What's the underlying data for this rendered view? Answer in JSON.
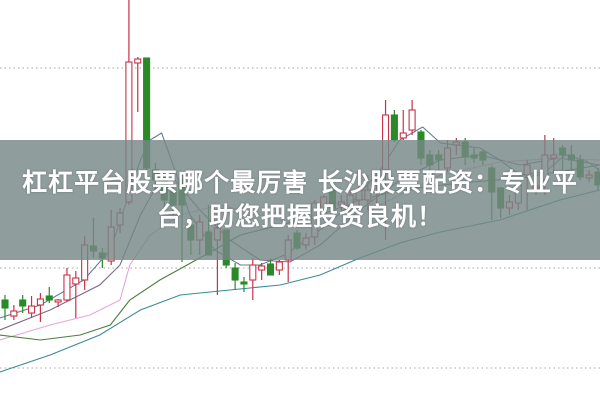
{
  "banner": {
    "line1": "杠杠平台股票哪个最厉害 长沙股票配资：专业平",
    "line2": "台，助您把握投资良机！"
  },
  "chart_data": {
    "type": "candlestick",
    "title": "",
    "xlabel": "",
    "ylabel": "",
    "ylim": [
      0,
      400
    ],
    "grid": true,
    "gridlines": [
      332,
      132,
      32
    ],
    "colors": {
      "up": "#c8324a",
      "down": "#2a8a2a",
      "grid": "#b8b8b8"
    },
    "candles_ohlc": [
      [
        100,
        105,
        80,
        92
      ],
      [
        84,
        95,
        80,
        89
      ],
      [
        100,
        105,
        87,
        94
      ],
      [
        87,
        104,
        82,
        94
      ],
      [
        95,
        107,
        78,
        101
      ],
      [
        104,
        113,
        97,
        100
      ],
      [
        98,
        101,
        93,
        100
      ],
      [
        100,
        132,
        98,
        125
      ],
      [
        116,
        129,
        82,
        122
      ],
      [
        120,
        164,
        110,
        155
      ],
      [
        154,
        182,
        142,
        149
      ],
      [
        147,
        152,
        132,
        142
      ],
      [
        139,
        190,
        135,
        173
      ],
      [
        175,
        192,
        167,
        187
      ],
      [
        198,
        400,
        195,
        338
      ],
      [
        337,
        343,
        288,
        341
      ],
      [
        342,
        342,
        230,
        232
      ],
      [
        230,
        237,
        210,
        220
      ],
      [
        222,
        225,
        190,
        200
      ],
      [
        210,
        215,
        185,
        195
      ],
      [
        220,
        225,
        138,
        195
      ],
      [
        175,
        182,
        145,
        160
      ],
      [
        160,
        185,
        145,
        178
      ],
      [
        168,
        195,
        145,
        145
      ],
      [
        160,
        195,
        105,
        172
      ],
      [
        170,
        170,
        132,
        135
      ],
      [
        132,
        137,
        110,
        120
      ],
      [
        118,
        123,
        108,
        116
      ],
      [
        120,
        142,
        100,
        135
      ],
      [
        130,
        137,
        120,
        134
      ],
      [
        136,
        142,
        125,
        125
      ],
      [
        130,
        140,
        125,
        138
      ],
      [
        140,
        165,
        118,
        160
      ],
      [
        167,
        170,
        150,
        152
      ],
      [
        155,
        167,
        150,
        162
      ],
      [
        163,
        200,
        155,
        197
      ],
      [
        190,
        205,
        180,
        203
      ],
      [
        210,
        213,
        185,
        192
      ],
      [
        195,
        205,
        185,
        198
      ],
      [
        195,
        210,
        175,
        205
      ],
      [
        200,
        215,
        190,
        210
      ],
      [
        200,
        225,
        190,
        210
      ],
      [
        215,
        225,
        195,
        220
      ],
      [
        230,
        300,
        160,
        285
      ],
      [
        285,
        290,
        258,
        260
      ],
      [
        262,
        290,
        260,
        267
      ],
      [
        270,
        300,
        265,
        290
      ],
      [
        268,
        270,
        235,
        242
      ],
      [
        245,
        250,
        230,
        235
      ],
      [
        245,
        250,
        228,
        240
      ],
      [
        232,
        260,
        228,
        252
      ],
      [
        255,
        262,
        245,
        258
      ],
      [
        258,
        262,
        235,
        243
      ],
      [
        245,
        252,
        237,
        242
      ],
      [
        248,
        250,
        235,
        240
      ],
      [
        232,
        235,
        180,
        208
      ],
      [
        212,
        213,
        182,
        192
      ],
      [
        192,
        205,
        185,
        198
      ],
      [
        197,
        218,
        190,
        218
      ],
      [
        225,
        240,
        190,
        235
      ],
      [
        212,
        225,
        205,
        214
      ],
      [
        220,
        265,
        205,
        245
      ],
      [
        242,
        262,
        228,
        245
      ],
      [
        252,
        255,
        230,
        245
      ],
      [
        245,
        255,
        228,
        240
      ],
      [
        240,
        245,
        220,
        223
      ],
      [
        222,
        230,
        218,
        225
      ],
      [
        228,
        232,
        210,
        215
      ]
    ],
    "moving_averages": [
      {
        "color": "#5f7f8e",
        "points": [
          [
            -0.6,
            82
          ],
          [
            4,
            95
          ],
          [
            8.9,
            120
          ],
          [
            11.9,
            150
          ],
          [
            13.8,
            200
          ],
          [
            15.3,
            240
          ],
          [
            16.4,
            260
          ],
          [
            17.7,
            267
          ],
          [
            19.2,
            230
          ],
          [
            20.9,
            185
          ],
          [
            23.7,
            150
          ],
          [
            26.6,
            135
          ],
          [
            28.8,
            135
          ],
          [
            31.6,
            145
          ],
          [
            33.3,
            155
          ],
          [
            35.6,
            170
          ],
          [
            39,
            195
          ],
          [
            42.4,
            230
          ],
          [
            44.6,
            260
          ],
          [
            47.2,
            273
          ],
          [
            49.2,
            257
          ],
          [
            53.7,
            252
          ],
          [
            55.9,
            240
          ],
          [
            58.2,
            225
          ],
          [
            61,
            228
          ],
          [
            63.3,
            245
          ],
          [
            65.5,
            240
          ],
          [
            67.2,
            230
          ]
        ]
      },
      {
        "color": "#7a6a88",
        "points": [
          [
            -0.6,
            70
          ],
          [
            5.1,
            90
          ],
          [
            10.7,
            115
          ],
          [
            13,
            135
          ],
          [
            15.3,
            185
          ],
          [
            17.5,
            220
          ],
          [
            19.2,
            220
          ],
          [
            22,
            190
          ],
          [
            25.4,
            160
          ],
          [
            28.8,
            140
          ],
          [
            32.2,
            138
          ],
          [
            35.6,
            155
          ],
          [
            40.1,
            190
          ],
          [
            44.6,
            220
          ],
          [
            49.2,
            240
          ],
          [
            53.7,
            245
          ],
          [
            58.2,
            235
          ],
          [
            62.7,
            242
          ],
          [
            67.2,
            235
          ]
        ]
      },
      {
        "color": "#e6a6de",
        "points": [
          [
            -0.6,
            60
          ],
          [
            5.1,
            75
          ],
          [
            9.6,
            85
          ],
          [
            13,
            100
          ],
          [
            14.1,
            135
          ],
          [
            16.4,
            165
          ],
          [
            19.8,
            185
          ],
          [
            24.3,
            195
          ],
          [
            28.8,
            185
          ],
          [
            33.3,
            175
          ],
          [
            37.9,
            175
          ],
          [
            42.4,
            195
          ],
          [
            49.2,
            225
          ],
          [
            55.9,
            238
          ],
          [
            62.7,
            242
          ],
          [
            67.2,
            240
          ]
        ]
      },
      {
        "color": "#4f7d3c",
        "points": [
          [
            -0.6,
            65
          ],
          [
            4,
            60
          ],
          [
            8.5,
            65
          ],
          [
            11.9,
            75
          ],
          [
            14.1,
            100
          ],
          [
            17.5,
            120
          ],
          [
            22,
            142
          ],
          [
            26.6,
            165
          ],
          [
            31.1,
            175
          ],
          [
            35.6,
            185
          ],
          [
            40.1,
            200
          ],
          [
            44.6,
            210
          ],
          [
            51.4,
            217
          ],
          [
            58.2,
            222
          ],
          [
            63.8,
            230
          ],
          [
            67.2,
            235
          ]
        ]
      },
      {
        "color": "#3a8a9a",
        "points": [
          [
            -0.6,
            28
          ],
          [
            5.1,
            45
          ],
          [
            10.7,
            65
          ],
          [
            15.3,
            90
          ],
          [
            19.8,
            105
          ],
          [
            25.4,
            110
          ],
          [
            31.1,
            115
          ],
          [
            35.6,
            125
          ],
          [
            40.1,
            142
          ],
          [
            44.6,
            157
          ],
          [
            49.2,
            168
          ],
          [
            55.9,
            180
          ],
          [
            62.7,
            200
          ],
          [
            67.2,
            210
          ]
        ]
      }
    ]
  }
}
